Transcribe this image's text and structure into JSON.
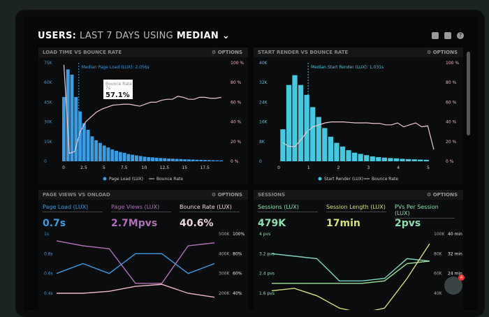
{
  "header": {
    "prefix": "USERS:",
    "range": "LAST 7 DAYS",
    "using": "USING",
    "stat": "MEDIAN",
    "chevron": "chevron-down-icon",
    "icons": [
      "monitor-icon",
      "image-icon",
      "help-icon"
    ]
  },
  "options_label": "OPTIONS",
  "colors": {
    "blue": "#3d9be0",
    "cyan": "#46c8e0",
    "pink": "#f0b8c4",
    "purple": "#b070b8",
    "green": "#8ee0b0",
    "yellow": "#d8e080"
  },
  "chat": {
    "badge": "4"
  },
  "chart_data": [
    {
      "type": "bar",
      "title": "LOAD TIME VS BOUNCE RATE",
      "annotation": "Median Page Load (LUX): 2.056s",
      "median": 2.056,
      "tooltip": {
        "label": "Bounce Rate",
        "sub": "7s",
        "value": "57.1%"
      },
      "x": [
        0,
        0.5,
        1,
        1.5,
        2,
        2.5,
        3,
        3.5,
        4,
        4.5,
        5,
        5.5,
        6,
        6.5,
        7,
        7.5,
        8,
        8.5,
        9,
        9.5,
        10,
        10.5,
        11,
        11.5,
        12,
        12.5,
        13,
        13.5,
        14,
        14.5,
        15,
        15.5,
        16,
        16.5,
        17,
        17.5,
        18,
        18.5,
        19,
        19.5
      ],
      "values": [
        49,
        70,
        66,
        49,
        38,
        29,
        24,
        19,
        16,
        14,
        12,
        10.5,
        9,
        8,
        7,
        6.5,
        5.5,
        5,
        4.5,
        4,
        3.5,
        3.2,
        3,
        2.7,
        2.5,
        2.3,
        2.1,
        2,
        1.8,
        1.7,
        1.5,
        1.4,
        1.3,
        1.2,
        1.1,
        1,
        0.9,
        0.8,
        0.7,
        0.6
      ],
      "line": [
        98,
        8,
        10,
        30,
        40,
        45,
        50,
        53,
        55,
        57,
        57.5,
        58,
        58,
        57,
        56,
        58,
        60,
        60,
        62,
        63,
        63,
        66,
        65,
        63,
        63,
        65,
        65,
        64,
        64,
        65
      ],
      "line_x_max": 19.5,
      "yticks": [
        "0",
        "15K",
        "30K",
        "45K",
        "60K",
        "75K"
      ],
      "ymax": 75,
      "y2ticks": [
        "0 %",
        "20 %",
        "40 %",
        "60 %",
        "80 %",
        "100 %"
      ],
      "xticks": [
        "0",
        "2.5",
        "5",
        "7.5",
        "10",
        "12.5",
        "15",
        "17.5"
      ],
      "xtick_vals": [
        0,
        2.5,
        5,
        7.5,
        10,
        12.5,
        15,
        17.5
      ],
      "xmax": 20,
      "legend": [
        "Page Load (LUX)",
        "Bounce Rate"
      ]
    },
    {
      "type": "bar",
      "title": "START RENDER VS BOUNCE RATE",
      "annotation": "Median Start Render (LUX): 1.031s",
      "median": 1.031,
      "x": [
        0.1,
        0.3,
        0.5,
        0.7,
        0.9,
        1.1,
        1.3,
        1.5,
        1.7,
        1.9,
        2.1,
        2.3,
        2.5,
        2.7,
        2.9,
        3.1,
        3.3,
        3.5,
        3.7,
        3.9,
        4.1,
        4.3,
        4.5,
        4.7,
        4.9
      ],
      "values": [
        13,
        31,
        35,
        31,
        27,
        22,
        18,
        13.5,
        10,
        7.5,
        6,
        4.5,
        3.5,
        3,
        2.5,
        2,
        1.7,
        1.5,
        1.3,
        1.2,
        1,
        0.9,
        0.8,
        0.7,
        0.6
      ],
      "line": [
        19,
        15,
        15,
        22,
        30,
        35,
        37,
        39,
        40,
        40,
        40,
        39.5,
        39,
        39,
        39,
        38.5,
        38.5,
        37,
        37,
        39,
        35,
        37,
        39,
        35,
        36,
        12
      ],
      "line_x_max": 5.15,
      "yticks": [
        "0",
        "8K",
        "16K",
        "24K",
        "32K",
        "40K"
      ],
      "ymax": 40,
      "y2ticks": [
        "0 %",
        "20 %",
        "40 %",
        "60 %",
        "80 %",
        "100 %"
      ],
      "xticks": [
        "0",
        "1",
        "2",
        "3",
        "4",
        "5"
      ],
      "xtick_vals": [
        0,
        1,
        2,
        3,
        4,
        5
      ],
      "xmax": 5.4,
      "legend": [
        "Start Render (LUX)",
        "Bounce Rate"
      ]
    },
    {
      "type": "line",
      "title": "PAGE VIEWS VS ONLOAD",
      "kpis": [
        {
          "label": "Page Load (LUX)",
          "value": "0.7s",
          "color": "#3d9be0"
        },
        {
          "label": "Page Views (LUX)",
          "value": "2.7Mpvs",
          "color": "#b070b8"
        },
        {
          "label": "Bounce Rate (LUX)",
          "value": "40.6%",
          "color": "#f0d8e0"
        }
      ],
      "yticks": [
        "1s",
        "0.8s",
        "0.6s",
        "0.4s"
      ],
      "y2ticks": [
        "500K",
        "400K",
        "300K",
        "200K"
      ],
      "y3ticks": [
        "100%",
        "80%",
        "60%",
        "40%"
      ],
      "series": [
        {
          "values": [
            0.6,
            0.7,
            0.6,
            0.8,
            0.8,
            0.6,
            0.7
          ],
          "color": "#3d9be0"
        },
        {
          "values": [
            0.93,
            0.88,
            0.85,
            0.5,
            0.5,
            0.88,
            0.91
          ],
          "color": "#b070b8"
        },
        {
          "values": [
            0.4,
            0.4,
            0.42,
            0.47,
            0.49,
            0.4,
            0.36
          ],
          "color": "#f0b8c4"
        }
      ]
    },
    {
      "type": "line",
      "title": "SESSIONS",
      "kpis": [
        {
          "label": "Sessions (LUX)",
          "value": "479K",
          "color": "#8ee0b0"
        },
        {
          "label": "Session Length (LUX)",
          "value": "17min",
          "color": "#d8e080"
        },
        {
          "label": "PVs Per Session (LUX)",
          "value": "2pvs",
          "color": "#8ee0b0"
        }
      ],
      "yticks": [
        "4 pvs",
        "3.2 pvs",
        "2.4 pvs",
        "1.6 pvs"
      ],
      "y2ticks": [
        "100K",
        "80K",
        "60K",
        "40K"
      ],
      "y3ticks": [
        "40 min",
        "32 min",
        "24 min",
        ""
      ],
      "series": [
        {
          "values": [
            3.2,
            3.1,
            3.0,
            2.1,
            2.1,
            2.2,
            3.0,
            2.9
          ],
          "color": "#7ed8c0"
        },
        {
          "values": [
            2.0,
            2.0,
            2.0,
            2.0,
            2.0,
            2.1,
            2.8,
            2.9
          ],
          "color": "#a0e098"
        },
        {
          "values": [
            1.7,
            1.8,
            1.5,
            1.0,
            0.8,
            1.0,
            2.2,
            3.6
          ],
          "color": "#d8e080"
        }
      ]
    }
  ]
}
